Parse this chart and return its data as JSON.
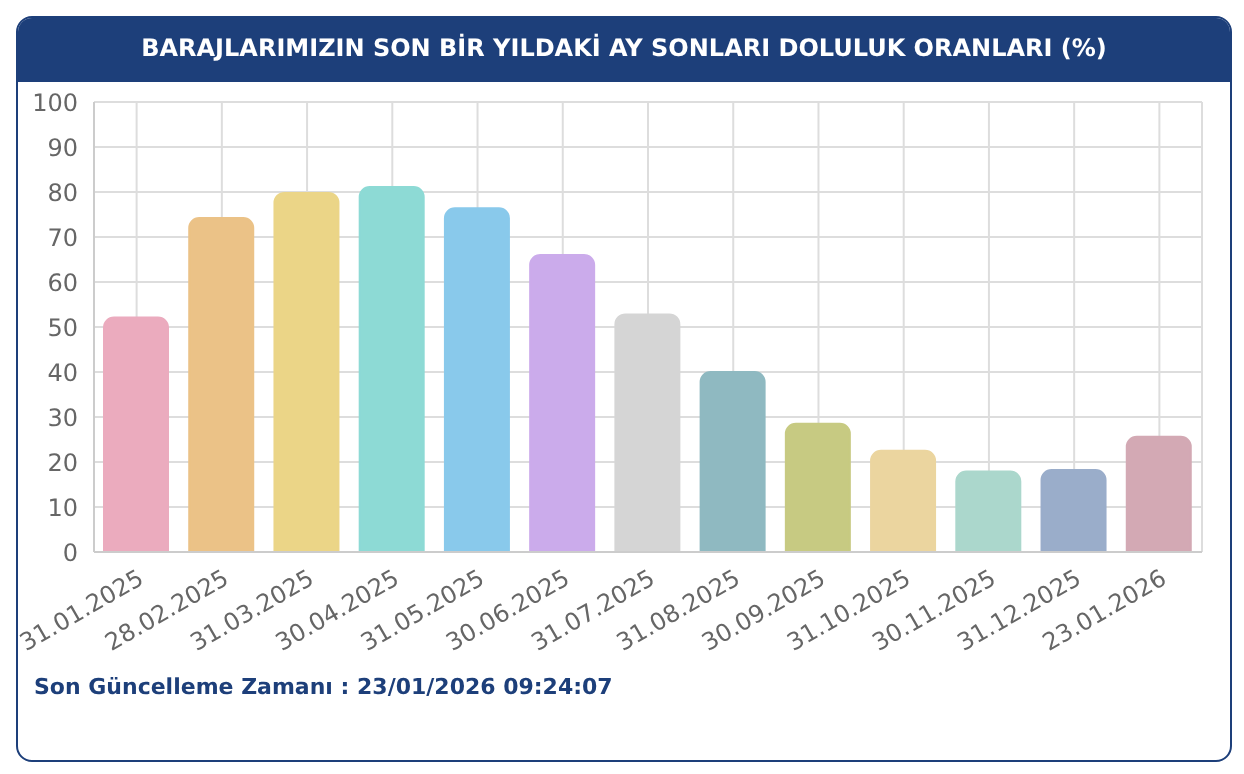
{
  "chart_data": {
    "type": "bar",
    "title": "BARAJLARIMIZIN SON BİR YILDAKİ AY SONLARI DOLULUK ORANLARI (%)",
    "categories": [
      "31.01.2025",
      "28.02.2025",
      "31.03.2025",
      "30.04.2025",
      "31.05.2025",
      "30.06.2025",
      "31.07.2025",
      "31.08.2025",
      "30.09.2025",
      "31.10.2025",
      "30.11.2025",
      "31.12.2025",
      "23.01.2026"
    ],
    "values": [
      52.1,
      74.2,
      79.8,
      81.1,
      76.4,
      66.0,
      52.8,
      40.0,
      28.5,
      22.5,
      17.9,
      18.2,
      25.6
    ],
    "colors": [
      "#ffc2cf",
      "#fed6ae",
      "#fde8b3",
      "#b2e6e3",
      "#abd6f5",
      "#d5bffa",
      "#e8e8e8",
      "#a9c6cb",
      "#d7d9a8",
      "#f8e8c3",
      "#c8e6de",
      "#aebbcf",
      "#d8bcc3"
    ],
    "ylim": [
      0,
      100
    ],
    "yticks": [
      0,
      10,
      20,
      30,
      40,
      50,
      60,
      70,
      80,
      90,
      100
    ],
    "grid": true,
    "annotations": [
      "Son Güncelleme Zamanı : 23/01/2026 09:24:07"
    ]
  }
}
